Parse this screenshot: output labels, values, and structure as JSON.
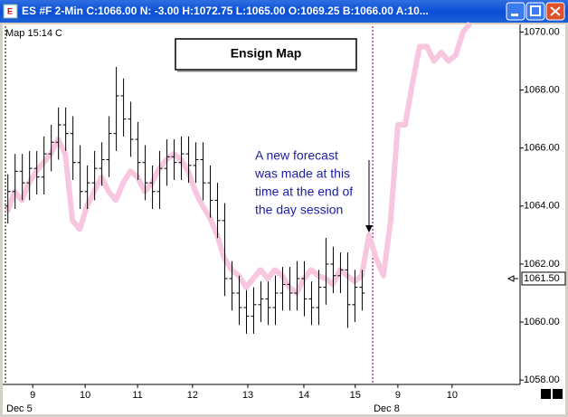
{
  "window": {
    "title": "ES #F  2-Min  C:1066.00  N: -3.00  H:1072.75  L:1065.00  O:1069.25  B:1066.00  A:10..."
  },
  "chart_data": {
    "type": "ohlc",
    "corner_label": "Map  15:14 C",
    "title": "Ensign Map",
    "annotation": [
      "A new forecast",
      "was made at this",
      "time at the end of",
      "the day session"
    ],
    "last_value": {
      "value": 1061.5,
      "label": "1061.50"
    },
    "ylim": [
      1057.85,
      1070.2
    ],
    "yticks": [
      {
        "value": 1058,
        "label": "1058.00"
      },
      {
        "value": 1060,
        "label": "1060.00"
      },
      {
        "value": 1062,
        "label": "1062.00"
      },
      {
        "value": 1064,
        "label": "1064.00"
      },
      {
        "value": 1066,
        "label": "1066.00"
      },
      {
        "value": 1068,
        "label": "1068.00"
      },
      {
        "value": 1070,
        "label": "1070.00"
      }
    ],
    "xlim": [
      -0.4,
      70.9
    ],
    "xticks": [
      {
        "value": 3.5,
        "label": "9"
      },
      {
        "value": 10.75,
        "label": "10"
      },
      {
        "value": 18,
        "label": "11"
      },
      {
        "value": 25.6,
        "label": "12"
      },
      {
        "value": 33.25,
        "label": "13"
      },
      {
        "value": 41,
        "label": "14"
      },
      {
        "value": 48.1,
        "label": "15"
      },
      {
        "value": 54,
        "label": "9"
      },
      {
        "value": 61.5,
        "label": "10"
      }
    ],
    "sessions": [
      {
        "x": -0.4,
        "label": "Dec 5"
      },
      {
        "x": 50.4,
        "label": "Dec 8"
      }
    ],
    "series": [
      {
        "kind": "line",
        "color": "#f8c6df",
        "x": [
          0,
          1,
          2,
          3,
          4,
          5,
          6,
          7,
          8,
          9,
          10,
          11,
          12,
          13,
          14,
          15,
          16,
          17,
          18,
          19,
          20,
          21,
          22,
          23,
          24,
          25,
          26,
          27,
          28,
          29,
          30,
          31,
          32,
          33,
          34,
          35,
          36,
          37,
          38,
          39,
          40,
          41,
          42,
          43,
          44,
          45,
          46,
          47,
          48,
          49,
          50,
          51,
          52,
          53,
          54,
          55,
          56,
          57,
          58,
          59,
          60,
          61,
          62,
          63,
          64
        ],
        "values": [
          1063.8,
          1064.5,
          1064.2,
          1064.8,
          1065.2,
          1065.5,
          1065.8,
          1066.3,
          1065.8,
          1063.5,
          1063.2,
          1064.0,
          1064.5,
          1065.0,
          1064.5,
          1064.2,
          1064.8,
          1065.2,
          1065.0,
          1064.5,
          1064.8,
          1065.3,
          1065.6,
          1065.8,
          1065.6,
          1065.2,
          1064.5,
          1064.0,
          1063.6,
          1063.0,
          1062.2,
          1061.8,
          1061.6,
          1061.2,
          1061.5,
          1061.8,
          1061.5,
          1061.8,
          1061.6,
          1061.2,
          1061.0,
          1061.5,
          1061.8,
          1061.6,
          1061.5,
          1061.3,
          1061.8,
          1061.6,
          1061.4,
          1061.6,
          1063.0,
          1062.2,
          1061.6,
          1063.5,
          1066.8,
          1066.8,
          1068.2,
          1069.5,
          1069.5,
          1069.0,
          1069.3,
          1069.0,
          1069.2,
          1070.0,
          1070.3
        ]
      },
      {
        "kind": "ohlc",
        "color": "#000000",
        "x": [
          0,
          1,
          2,
          3,
          4,
          5,
          6,
          7,
          8,
          9,
          10,
          11,
          12,
          13,
          14,
          15,
          16,
          17,
          18,
          19,
          20,
          21,
          22,
          23,
          24,
          25,
          26,
          27,
          28,
          29,
          30,
          31,
          32,
          33,
          34,
          35,
          36,
          37,
          38,
          39,
          40,
          41,
          42,
          43,
          44,
          45,
          46,
          47,
          48,
          49
        ],
        "open": [
          1064.0,
          1064.5,
          1065.2,
          1064.8,
          1065.3,
          1065.0,
          1065.8,
          1066.2,
          1066.8,
          1066.5,
          1065.5,
          1064.5,
          1064.8,
          1065.3,
          1065.6,
          1066.5,
          1067.8,
          1067.0,
          1066.3,
          1065.5,
          1064.8,
          1064.5,
          1065.3,
          1065.7,
          1065.5,
          1065.8,
          1065.4,
          1065.6,
          1064.8,
          1064.2,
          1063.5,
          1061.5,
          1061.0,
          1060.5,
          1060.2,
          1060.6,
          1060.8,
          1060.5,
          1061.0,
          1061.3,
          1061.0,
          1061.5,
          1060.8,
          1060.5,
          1061.2,
          1062.0,
          1061.6,
          1061.8,
          1060.6,
          1061.2
        ],
        "high": [
          1065.1,
          1065.8,
          1065.8,
          1065.9,
          1065.9,
          1066.4,
          1066.8,
          1067.4,
          1067.4,
          1067.1,
          1066.1,
          1065.4,
          1065.9,
          1066.2,
          1067.1,
          1068.8,
          1068.4,
          1067.6,
          1066.9,
          1066.1,
          1065.4,
          1065.9,
          1066.3,
          1066.3,
          1066.4,
          1066.4,
          1066.2,
          1066.2,
          1065.4,
          1064.8,
          1064.1,
          1062.1,
          1061.6,
          1061.1,
          1061.2,
          1061.4,
          1061.4,
          1061.6,
          1061.9,
          1061.9,
          1062.1,
          1062.1,
          1061.4,
          1061.8,
          1062.9,
          1062.6,
          1062.4,
          1062.4,
          1061.8,
          1061.8
        ],
        "low": [
          1063.4,
          1063.9,
          1064.2,
          1064.2,
          1064.4,
          1064.4,
          1065.2,
          1065.6,
          1065.9,
          1064.9,
          1063.9,
          1063.9,
          1064.2,
          1064.7,
          1065.0,
          1065.9,
          1066.4,
          1065.7,
          1064.9,
          1064.2,
          1063.9,
          1063.9,
          1064.7,
          1064.9,
          1064.9,
          1064.8,
          1064.8,
          1064.2,
          1063.6,
          1062.9,
          1060.9,
          1060.4,
          1059.9,
          1059.6,
          1059.6,
          1060.0,
          1059.9,
          1059.9,
          1060.4,
          1060.4,
          1060.4,
          1060.2,
          1059.9,
          1059.9,
          1060.6,
          1061.0,
          1061.0,
          1059.8,
          1060.0,
          1060.4
        ],
        "close": [
          1064.5,
          1065.2,
          1064.8,
          1065.3,
          1065.0,
          1065.8,
          1066.2,
          1066.8,
          1066.5,
          1065.5,
          1064.5,
          1064.8,
          1065.3,
          1065.6,
          1066.5,
          1067.8,
          1067.0,
          1066.3,
          1065.5,
          1064.8,
          1064.5,
          1065.3,
          1065.7,
          1065.5,
          1065.8,
          1065.4,
          1065.6,
          1064.8,
          1064.2,
          1063.5,
          1061.5,
          1061.0,
          1060.5,
          1060.2,
          1060.6,
          1060.8,
          1060.5,
          1061.0,
          1061.3,
          1061.0,
          1061.5,
          1060.8,
          1060.5,
          1061.2,
          1062.0,
          1061.6,
          1061.8,
          1060.6,
          1061.2,
          1061.0
        ]
      }
    ]
  }
}
